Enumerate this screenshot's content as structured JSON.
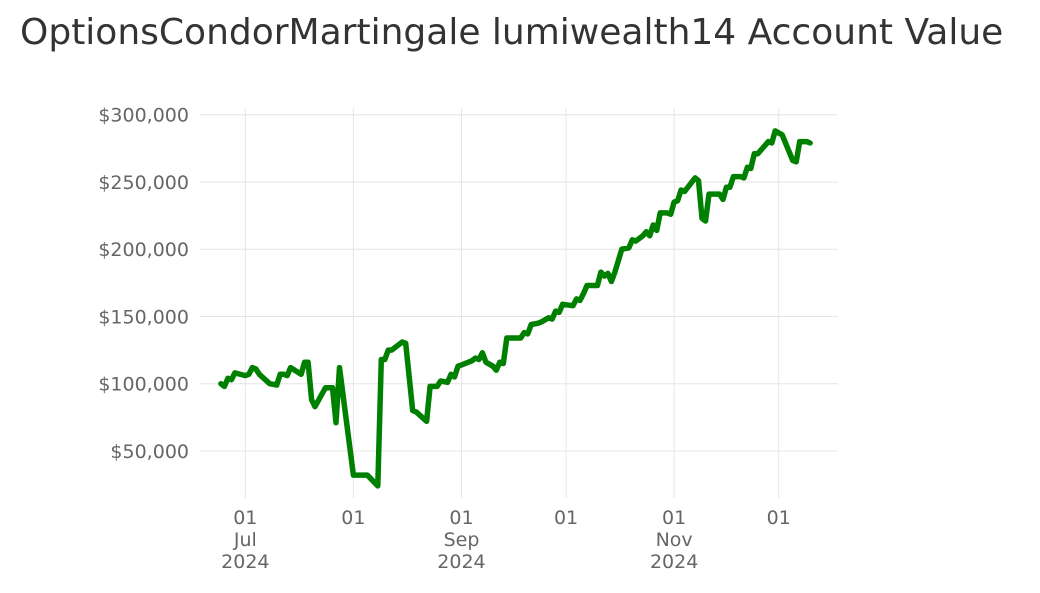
{
  "title": "OptionsCondorMartingale lumiwealth14 Account Value",
  "chart_data": {
    "type": "line",
    "title": "OptionsCondorMartingale lumiwealth14 Account Value",
    "xlabel": "",
    "ylabel": "",
    "grid": true,
    "ylim": [
      15000,
      305000
    ],
    "xlim": [
      "2024-06-18",
      "2024-12-18"
    ],
    "y_ticks": [
      {
        "value": 50000,
        "label": "$50,000"
      },
      {
        "value": 100000,
        "label": "$100,000"
      },
      {
        "value": 150000,
        "label": "$150,000"
      },
      {
        "value": 200000,
        "label": "$200,000"
      },
      {
        "value": 250000,
        "label": "$250,000"
      },
      {
        "value": 300000,
        "label": "$300,000"
      }
    ],
    "x_ticks": [
      {
        "date": "2024-07-01",
        "lines": [
          "01",
          "Jul",
          "2024"
        ]
      },
      {
        "date": "2024-08-01",
        "lines": [
          "01"
        ]
      },
      {
        "date": "2024-09-01",
        "lines": [
          "01",
          "Sep",
          "2024"
        ]
      },
      {
        "date": "2024-10-01",
        "lines": [
          "01"
        ]
      },
      {
        "date": "2024-11-01",
        "lines": [
          "01",
          "Nov",
          "2024"
        ]
      },
      {
        "date": "2024-12-01",
        "lines": [
          "01"
        ]
      }
    ],
    "series": [
      {
        "color": "#008000",
        "points": [
          [
            "2024-06-24",
            100000
          ],
          [
            "2024-06-25",
            98000
          ],
          [
            "2024-06-26",
            104000
          ],
          [
            "2024-06-27",
            103000
          ],
          [
            "2024-06-28",
            108000
          ],
          [
            "2024-07-01",
            106000
          ],
          [
            "2024-07-02",
            107000
          ],
          [
            "2024-07-03",
            112000
          ],
          [
            "2024-07-04",
            111000
          ],
          [
            "2024-07-05",
            107000
          ],
          [
            "2024-07-08",
            100000
          ],
          [
            "2024-07-10",
            99000
          ],
          [
            "2024-07-11",
            107000
          ],
          [
            "2024-07-12",
            107000
          ],
          [
            "2024-07-13",
            106000
          ],
          [
            "2024-07-14",
            112000
          ],
          [
            "2024-07-17",
            107000
          ],
          [
            "2024-07-18",
            116000
          ],
          [
            "2024-07-19",
            116000
          ],
          [
            "2024-07-20",
            88000
          ],
          [
            "2024-07-21",
            83000
          ],
          [
            "2024-07-24",
            97000
          ],
          [
            "2024-07-26",
            97000
          ],
          [
            "2024-07-27",
            71000
          ],
          [
            "2024-07-28",
            112000
          ],
          [
            "2024-08-01",
            32000
          ],
          [
            "2024-08-04",
            32000
          ],
          [
            "2024-08-05",
            32000
          ],
          [
            "2024-08-08",
            24000
          ],
          [
            "2024-08-09",
            118000
          ],
          [
            "2024-08-10",
            118000
          ],
          [
            "2024-08-11",
            125000
          ],
          [
            "2024-08-12",
            125000
          ],
          [
            "2024-08-15",
            131000
          ],
          [
            "2024-08-16",
            130000
          ],
          [
            "2024-08-18",
            80000
          ],
          [
            "2024-08-19",
            79000
          ],
          [
            "2024-08-22",
            72000
          ],
          [
            "2024-08-23",
            98000
          ],
          [
            "2024-08-25",
            98000
          ],
          [
            "2024-08-26",
            102000
          ],
          [
            "2024-08-28",
            101000
          ],
          [
            "2024-08-29",
            107000
          ],
          [
            "2024-08-30",
            105000
          ],
          [
            "2024-08-31",
            113000
          ],
          [
            "2024-09-01",
            114000
          ],
          [
            "2024-09-03",
            116000
          ],
          [
            "2024-09-04",
            117000
          ],
          [
            "2024-09-05",
            119000
          ],
          [
            "2024-09-06",
            118000
          ],
          [
            "2024-09-07",
            123000
          ],
          [
            "2024-09-08",
            116000
          ],
          [
            "2024-09-10",
            113000
          ],
          [
            "2024-09-11",
            110000
          ],
          [
            "2024-09-12",
            116000
          ],
          [
            "2024-09-13",
            115000
          ],
          [
            "2024-09-14",
            134000
          ],
          [
            "2024-09-16",
            134000
          ],
          [
            "2024-09-18",
            134000
          ],
          [
            "2024-09-19",
            138000
          ],
          [
            "2024-09-20",
            137000
          ],
          [
            "2024-09-21",
            144000
          ],
          [
            "2024-09-23",
            145000
          ],
          [
            "2024-09-24",
            146000
          ],
          [
            "2024-09-26",
            149000
          ],
          [
            "2024-09-27",
            148000
          ],
          [
            "2024-09-28",
            154000
          ],
          [
            "2024-09-29",
            153000
          ],
          [
            "2024-09-30",
            159000
          ],
          [
            "2024-10-03",
            158000
          ],
          [
            "2024-10-04",
            163000
          ],
          [
            "2024-10-05",
            162000
          ],
          [
            "2024-10-06",
            167000
          ],
          [
            "2024-10-07",
            173000
          ],
          [
            "2024-10-10",
            173000
          ],
          [
            "2024-10-11",
            183000
          ],
          [
            "2024-10-12",
            180000
          ],
          [
            "2024-10-13",
            182000
          ],
          [
            "2024-10-14",
            176000
          ],
          [
            "2024-10-15",
            183000
          ],
          [
            "2024-10-17",
            200000
          ],
          [
            "2024-10-19",
            201000
          ],
          [
            "2024-10-20",
            207000
          ],
          [
            "2024-10-21",
            206000
          ],
          [
            "2024-10-23",
            210000
          ],
          [
            "2024-10-24",
            213000
          ],
          [
            "2024-10-25",
            210000
          ],
          [
            "2024-10-26",
            218000
          ],
          [
            "2024-10-27",
            214000
          ],
          [
            "2024-10-28",
            227000
          ],
          [
            "2024-10-30",
            227000
          ],
          [
            "2024-10-31",
            226000
          ],
          [
            "2024-11-01",
            235000
          ],
          [
            "2024-11-02",
            236000
          ],
          [
            "2024-11-03",
            244000
          ],
          [
            "2024-11-04",
            243000
          ],
          [
            "2024-11-07",
            253000
          ],
          [
            "2024-11-08",
            251000
          ],
          [
            "2024-11-09",
            223000
          ],
          [
            "2024-11-10",
            221000
          ],
          [
            "2024-11-11",
            241000
          ],
          [
            "2024-11-14",
            241000
          ],
          [
            "2024-11-15",
            237000
          ],
          [
            "2024-11-16",
            246000
          ],
          [
            "2024-11-17",
            246000
          ],
          [
            "2024-11-18",
            254000
          ],
          [
            "2024-11-20",
            254000
          ],
          [
            "2024-11-21",
            253000
          ],
          [
            "2024-11-22",
            261000
          ],
          [
            "2024-11-23",
            260000
          ],
          [
            "2024-11-24",
            271000
          ],
          [
            "2024-11-25",
            271000
          ],
          [
            "2024-11-26",
            274000
          ],
          [
            "2024-11-27",
            277000
          ],
          [
            "2024-11-28",
            280000
          ],
          [
            "2024-11-29",
            279000
          ],
          [
            "2024-11-30",
            288000
          ],
          [
            "2024-12-02",
            285000
          ],
          [
            "2024-12-05",
            266000
          ],
          [
            "2024-12-06",
            265000
          ],
          [
            "2024-12-07",
            280000
          ],
          [
            "2024-12-09",
            280000
          ],
          [
            "2024-12-10",
            279000
          ]
        ]
      }
    ]
  }
}
